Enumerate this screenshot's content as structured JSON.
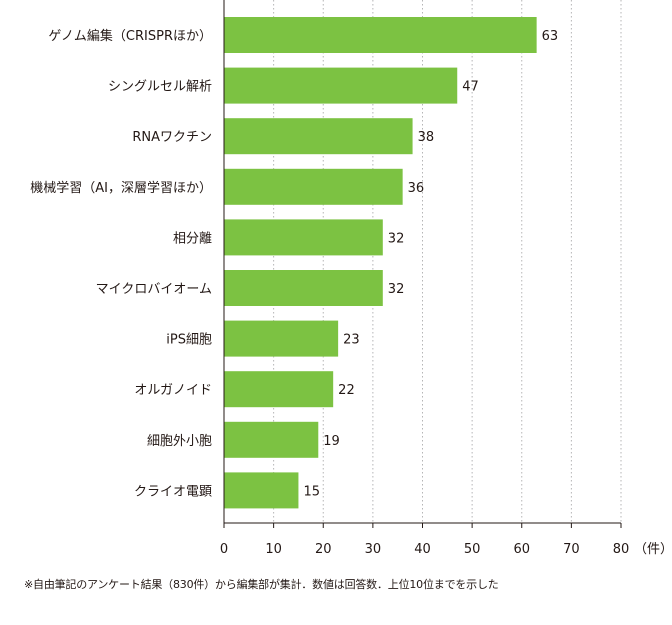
{
  "chart_data": {
    "type": "bar",
    "orientation": "horizontal",
    "categories": [
      "ゲノム編集（CRISPRほか）",
      "シングルセル解析",
      "RNAワクチン",
      "機械学習（AI，深層学習ほか）",
      "相分離",
      "マイクロバイオーム",
      "iPS細胞",
      "オルガノイド",
      "細胞外小胞",
      "クライオ電顕"
    ],
    "values": [
      63,
      47,
      38,
      36,
      32,
      32,
      23,
      22,
      19,
      15
    ],
    "value_labels": [
      "63",
      "47",
      "38",
      "36",
      "32",
      "32",
      "23",
      "22",
      "19",
      "15"
    ],
    "xticks": [
      "0",
      "10",
      "20",
      "30",
      "40",
      "50",
      "60",
      "70",
      "80"
    ],
    "xunit": "（件）",
    "xlim": [
      0,
      80
    ],
    "grid": "vertical-dotted",
    "bar_color": "#7cc242"
  },
  "footnote": "※自由筆記のアンケート結果（830件）から編集部が集計．数値は回答数．上位10位までを示した"
}
